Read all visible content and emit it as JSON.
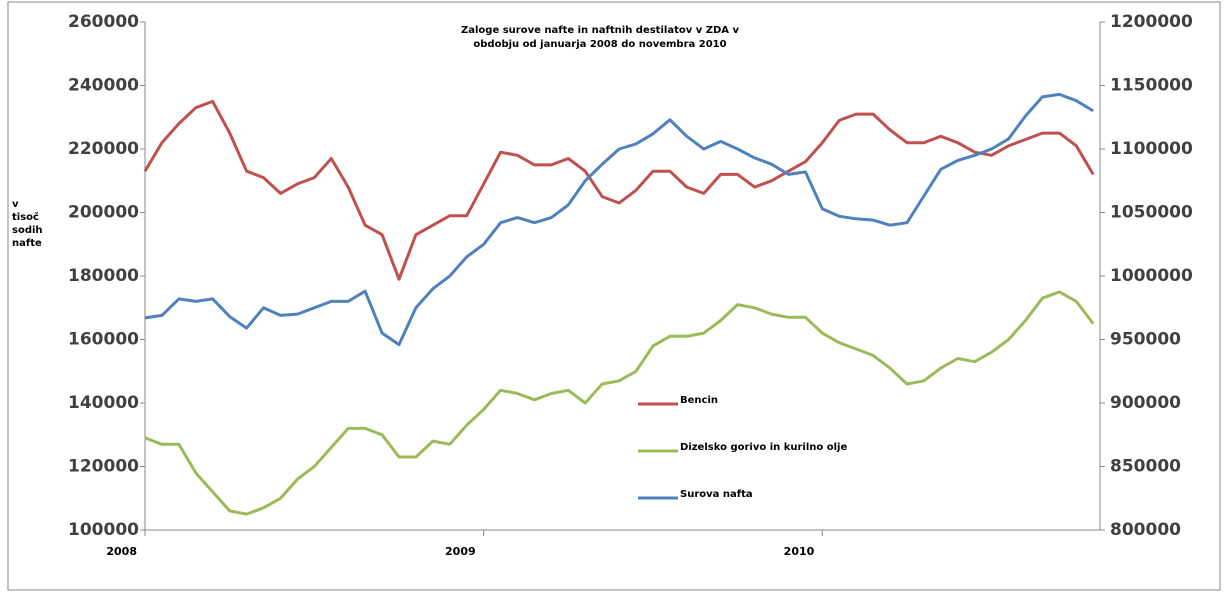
{
  "chart_data": {
    "type": "line",
    "title": [
      "Zaloge surove nafte in naftnih destilatov v ZDA v",
      "obdobju od januarja 2008 do novembra 2010"
    ],
    "ylabel": [
      "v",
      "tisoč",
      "sodih",
      "nafte"
    ],
    "x": [
      2008.0,
      2008.05,
      2008.1,
      2008.15,
      2008.2,
      2008.25,
      2008.3,
      2008.35,
      2008.4,
      2008.45,
      2008.5,
      2008.55,
      2008.6,
      2008.65,
      2008.7,
      2008.75,
      2008.8,
      2008.85,
      2008.9,
      2008.95,
      2009.0,
      2009.05,
      2009.1,
      2009.15,
      2009.2,
      2009.25,
      2009.3,
      2009.35,
      2009.4,
      2009.45,
      2009.5,
      2009.55,
      2009.6,
      2009.65,
      2009.7,
      2009.75,
      2009.8,
      2009.85,
      2009.9,
      2009.95,
      2010.0,
      2010.05,
      2010.1,
      2010.15,
      2010.2,
      2010.25,
      2010.3,
      2010.35,
      2010.4,
      2010.45,
      2010.5,
      2010.55,
      2010.6,
      2010.65,
      2010.7,
      2010.75,
      2010.8
    ],
    "xlim": [
      2008,
      2010.82
    ],
    "xticks": [
      2008,
      2009,
      2010
    ],
    "ylim": [
      100000,
      260000
    ],
    "yticks": [
      100000,
      120000,
      140000,
      160000,
      180000,
      200000,
      220000,
      240000,
      260000
    ],
    "y2lim": [
      800000,
      1200000
    ],
    "y2ticks": [
      800000,
      850000,
      900000,
      950000,
      1000000,
      1050000,
      1100000,
      1150000,
      1200000
    ],
    "legend": "center",
    "series": [
      {
        "name": "Bencin",
        "color": "#c0504d",
        "values": [
          213000,
          222000,
          228000,
          233000,
          235000,
          225000,
          213000,
          211000,
          206000,
          209000,
          211000,
          217000,
          208000,
          196000,
          193000,
          179000,
          193000,
          196000,
          199000,
          199000,
          209000,
          219000,
          218000,
          215000,
          215000,
          217000,
          213000,
          205000,
          203000,
          207000,
          213000,
          213000,
          208000,
          206000,
          212000,
          212000,
          208000,
          210000,
          213000,
          216000,
          222000,
          229000,
          231000,
          231000,
          226000,
          222000,
          222000,
          224000,
          222000,
          219000,
          218000,
          221000,
          223000,
          225000,
          225000,
          221000,
          212000
        ]
      },
      {
        "name": "Dizelsko gorivo in kurilno olje",
        "color": "#9bbb59",
        "values": [
          129000,
          127000,
          127000,
          118000,
          112000,
          106000,
          105000,
          107000,
          110000,
          116000,
          120000,
          126000,
          132000,
          132000,
          130000,
          123000,
          123000,
          128000,
          127000,
          133000,
          138000,
          144000,
          143000,
          141000,
          143000,
          144000,
          140000,
          146000,
          147000,
          150000,
          158000,
          161000,
          161000,
          162000,
          166000,
          171000,
          170000,
          168000,
          167000,
          167000,
          162000,
          159000,
          157000,
          155000,
          151000,
          146000,
          147000,
          151000,
          154000,
          153000,
          156000,
          160000,
          166000,
          173000,
          175000,
          172000,
          165000
        ]
      },
      {
        "name": "Surova nafta",
        "color": "#4f81bd",
        "axis": "y2",
        "values": [
          967000,
          969000,
          982000,
          980000,
          982000,
          968000,
          959000,
          975000,
          969000,
          970000,
          975000,
          980000,
          980000,
          988000,
          955000,
          946000,
          975000,
          990000,
          1000000,
          1015000,
          1025000,
          1042000,
          1046000,
          1042000,
          1046000,
          1056000,
          1075000,
          1088000,
          1100000,
          1104000,
          1112000,
          1123000,
          1110000,
          1100000,
          1106000,
          1100000,
          1093000,
          1088000,
          1080000,
          1082000,
          1053000,
          1047000,
          1045000,
          1044000,
          1040000,
          1042000,
          1063000,
          1084000,
          1091000,
          1095000,
          1100000,
          1108000,
          1126000,
          1141000,
          1143000,
          1138000,
          1130000
        ]
      }
    ]
  }
}
